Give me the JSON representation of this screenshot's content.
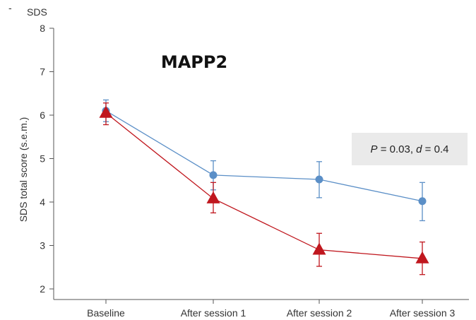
{
  "panel_mark": "-",
  "chart_data": {
    "type": "line",
    "title": "MAPP2",
    "corner_label": "SDS",
    "ylabel": "SDS total score (s.e.m.)",
    "xlabel": "",
    "categories": [
      "Baseline",
      "After session 1",
      "After session 2",
      "After session 3"
    ],
    "ylim": [
      2,
      8
    ],
    "yticks": [
      2,
      3,
      4,
      5,
      6,
      7,
      8
    ],
    "grid": false,
    "annotation": {
      "p_label": "P",
      "p_rest": " = 0.03, ",
      "d_label": "d",
      "d_rest": " = 0.4"
    },
    "series": [
      {
        "marker": "circle",
        "color": "#5b8fc7",
        "values": [
          6.1,
          4.62,
          4.52,
          4.02
        ],
        "err_upper": [
          6.35,
          4.95,
          4.93,
          4.45
        ],
        "err_lower": [
          5.85,
          4.28,
          4.1,
          3.57
        ]
      },
      {
        "marker": "triangle",
        "color": "#c0171e",
        "values": [
          6.05,
          4.08,
          2.9,
          2.7
        ],
        "err_upper": [
          6.28,
          4.45,
          3.28,
          3.08
        ],
        "err_lower": [
          5.78,
          3.75,
          2.52,
          2.33
        ]
      }
    ]
  }
}
